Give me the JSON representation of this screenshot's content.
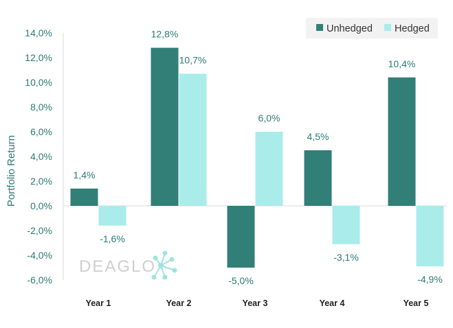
{
  "chart_data": {
    "type": "bar",
    "title": "",
    "xlabel": "",
    "ylabel": "Portfolio Return",
    "categories": [
      "Year 1",
      "Year 2",
      "Year 3",
      "Year 4",
      "Year 5"
    ],
    "series": [
      {
        "name": "Unhedged",
        "color": "#327f77",
        "values": [
          1.4,
          12.8,
          -5.0,
          4.5,
          10.4
        ],
        "labels": [
          "1,4%",
          "12,8%",
          "-5,0%",
          "4,5%",
          "10,4%"
        ]
      },
      {
        "name": "Hedged",
        "color": "#aaecea",
        "values": [
          -1.6,
          10.7,
          6.0,
          -3.1,
          -4.9
        ],
        "labels": [
          "-1,6%",
          "10,7%",
          "6,0%",
          "-3,1%",
          "-4,9%"
        ]
      }
    ],
    "ylim": [
      -6,
      14
    ],
    "yticks": [
      14,
      12,
      10,
      8,
      6,
      4,
      2,
      0,
      -2,
      -4,
      -6
    ],
    "ytick_labels": [
      "14,0%",
      "12,0%",
      "10,0%",
      "8,0%",
      "6,0%",
      "4,0%",
      "2,0%",
      "0,0%",
      "-2,0%",
      "-4,0%",
      "-6,0%"
    ],
    "legend": "top-right",
    "grid": false
  },
  "watermark": {
    "text": "DEAGLO"
  }
}
